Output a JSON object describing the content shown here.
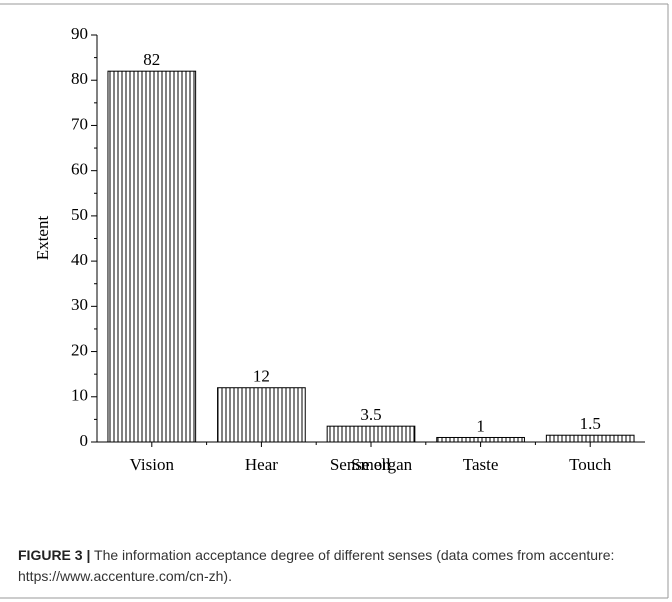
{
  "chart_data": {
    "type": "bar",
    "xlabel": "Sense organ",
    "ylabel": "Extent",
    "categories": [
      "Vision",
      "Hear",
      "Smell",
      "Taste",
      "Touch"
    ],
    "values": [
      82,
      12,
      3.5,
      1,
      1.5
    ],
    "color": "#000000",
    "ylim": [
      0,
      90
    ],
    "yticks": [
      0,
      10,
      20,
      30,
      40,
      50,
      60,
      70,
      80,
      90
    ],
    "grid": false
  },
  "caption": {
    "label": "FIGURE 3 |",
    "text": "The information acceptance degree of different senses (data comes from accenture: https://www.accenture.com/cn-zh)."
  }
}
